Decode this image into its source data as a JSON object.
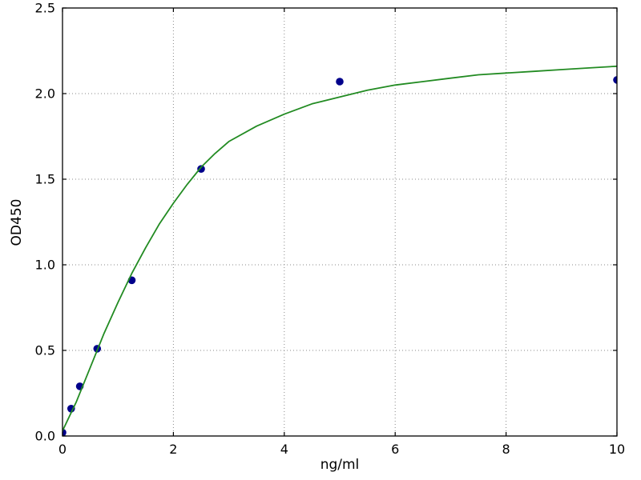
{
  "figure": {
    "background": "#ffffff"
  },
  "chart_data": {
    "type": "scatter",
    "title": "",
    "xlabel": "ng/ml",
    "ylabel": "OD450",
    "xlim": [
      0,
      10
    ],
    "ylim": [
      0,
      2.5
    ],
    "xticks": [
      0,
      2,
      4,
      6,
      8,
      10
    ],
    "xtick_labels": [
      "0",
      "2",
      "4",
      "6",
      "8",
      "10"
    ],
    "yticks": [
      0,
      0.5,
      1,
      1.5,
      2,
      2.5
    ],
    "ytick_labels": [
      "0.0",
      "0.5",
      "1.0",
      "1.5",
      "2.0",
      "2.5"
    ],
    "grid": true,
    "grid_linestyle": "dotted",
    "legend": "none",
    "colors": {
      "points": "#00008B",
      "curve": "#228B22",
      "grid": "#8a8a8a",
      "frame": "#000000",
      "text": "#000000"
    },
    "series": [
      {
        "name": "standard-points",
        "type": "scatter",
        "marker": "circle",
        "color": "#00008B",
        "points": [
          [
            0,
            0.02
          ],
          [
            0.156,
            0.16
          ],
          [
            0.3125,
            0.29
          ],
          [
            0.625,
            0.51
          ],
          [
            1.25,
            0.91
          ],
          [
            2.5,
            1.56
          ],
          [
            5,
            2.07
          ],
          [
            10,
            2.08
          ]
        ]
      },
      {
        "name": "fit-curve",
        "type": "line",
        "color": "#228B22",
        "points": [
          [
            0,
            0.03
          ],
          [
            0.25,
            0.2
          ],
          [
            0.5,
            0.4
          ],
          [
            0.75,
            0.6
          ],
          [
            1,
            0.78
          ],
          [
            1.25,
            0.95
          ],
          [
            1.5,
            1.1
          ],
          [
            1.75,
            1.24
          ],
          [
            2,
            1.36
          ],
          [
            2.25,
            1.47
          ],
          [
            2.5,
            1.57
          ],
          [
            2.75,
            1.65
          ],
          [
            3,
            1.72
          ],
          [
            3.5,
            1.81
          ],
          [
            4,
            1.88
          ],
          [
            4.5,
            1.94
          ],
          [
            5,
            1.98
          ],
          [
            5.5,
            2.02
          ],
          [
            6,
            2.05
          ],
          [
            6.5,
            2.07
          ],
          [
            7,
            2.09
          ],
          [
            7.5,
            2.11
          ],
          [
            8,
            2.12
          ],
          [
            8.5,
            2.13
          ],
          [
            9,
            2.14
          ],
          [
            9.5,
            2.15
          ],
          [
            10,
            2.16
          ]
        ]
      }
    ]
  }
}
